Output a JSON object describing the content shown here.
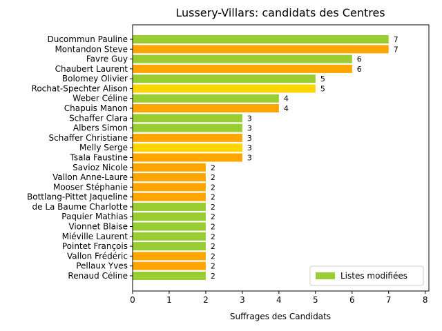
{
  "chart_data": {
    "type": "bar",
    "orientation": "horizontal",
    "title": "Lussery-Villars: candidats des Centres",
    "xlabel": "Suffrages des Candidats",
    "ylabel": "",
    "xlim": [
      0,
      8.1
    ],
    "xticks": [
      "0",
      "1",
      "2",
      "3",
      "4",
      "5",
      "6",
      "7",
      "8"
    ],
    "colors": {
      "green": "#9acd32",
      "orange": "#ffa500",
      "gold": "#ffd700"
    },
    "categories": [
      "Ducommun Pauline",
      "Montandon Steve",
      "Favre Guy",
      "Chaubert Laurent",
      "Bolomey Olivier",
      "Rochat-Spechter Alison",
      "Weber Céline",
      "Chapuis Manon",
      "Schaffer Clara",
      "Albers Simon",
      "Schaffer Christiane",
      "Melly Serge",
      "Tsala Faustine",
      "Savioz Nicole",
      "Vallon Anne-Laure",
      "Mooser Stéphanie",
      "Bottlang-Pittet Jaqueline",
      "de La Baume Charlotte",
      "Paquier Mathias",
      "Vionnet Blaise",
      "Miéville Laurent",
      "Pointet François",
      "Vallon Frédéric",
      "Pellaux Yves",
      "Renaud Céline"
    ],
    "values": [
      7,
      7,
      6,
      6,
      5,
      5,
      4,
      4,
      3,
      3,
      3,
      3,
      3,
      2,
      2,
      2,
      2,
      2,
      2,
      2,
      2,
      2,
      2,
      2,
      2
    ],
    "bar_colors": [
      "green",
      "orange",
      "green",
      "orange",
      "green",
      "gold",
      "green",
      "orange",
      "green",
      "green",
      "orange",
      "gold",
      "orange",
      "orange",
      "orange",
      "orange",
      "orange",
      "green",
      "green",
      "green",
      "green",
      "green",
      "orange",
      "orange",
      "green"
    ],
    "legend": {
      "label": "Listes modifiées",
      "color": "green",
      "location": "lower-right"
    }
  }
}
